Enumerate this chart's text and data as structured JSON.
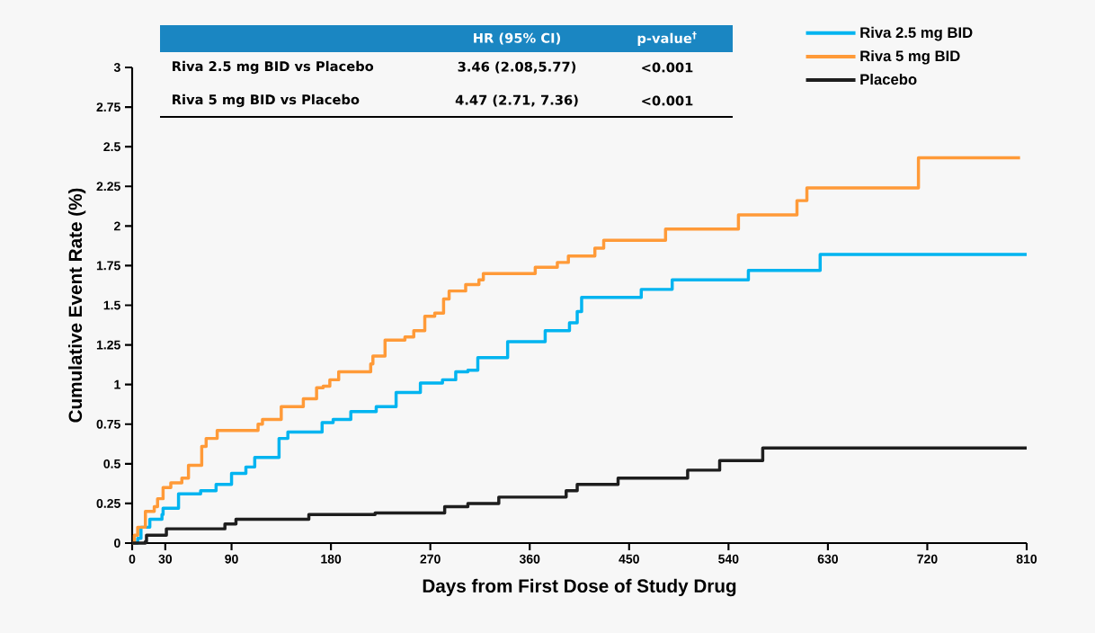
{
  "chart_data": {
    "type": "step",
    "xlabel": "Days from First Dose of Study Drug",
    "ylabel": "Cumulative Event Rate (%)",
    "annotations": [
      "HR (95% CI)",
      "p-value$^{†}$",
      "Riva 2.5 mg BID vs Placebo",
      "3.46 (2.08,5.77)",
      "<0.001",
      "Riva 5 mg BID vs Placebo",
      "4.47 (2.71, 7.36)",
      "<0.001"
    ],
    "series": [
      {
        "name": "Riva 2.5 mg BID",
        "color": "#00b4f0",
        "x": [
          0,
          5,
          8,
          16,
          27,
          28,
          42,
          62,
          76,
          90,
          103,
          111,
          133,
          141,
          172,
          182,
          198,
          221,
          239,
          261,
          281,
          293,
          304,
          313,
          340,
          374,
          396,
          403,
          407,
          461,
          489,
          558,
          623,
          810
        ],
        "values": [
          0,
          0.03,
          0.1,
          0.15,
          0.18,
          0.22,
          0.31,
          0.33,
          0.37,
          0.44,
          0.48,
          0.54,
          0.66,
          0.7,
          0.76,
          0.78,
          0.83,
          0.86,
          0.95,
          1.01,
          1.03,
          1.08,
          1.09,
          1.17,
          1.27,
          1.34,
          1.39,
          1.46,
          1.55,
          1.6,
          1.66,
          1.72,
          1.82,
          1.82
        ]
      },
      {
        "name": "Riva 5 mg BID",
        "color": "#ff9a38",
        "x": [
          0,
          2,
          5,
          12,
          20,
          23,
          28,
          35,
          45,
          51,
          63,
          67,
          77,
          114,
          118,
          135,
          155,
          167,
          173,
          179,
          187,
          216,
          218,
          229,
          247,
          255,
          265,
          274,
          282,
          287,
          302,
          314,
          318,
          365,
          385,
          395,
          419,
          427,
          483,
          549,
          602,
          611,
          712,
          804
        ],
        "values": [
          0,
          0.05,
          0.1,
          0.2,
          0.23,
          0.28,
          0.35,
          0.38,
          0.41,
          0.49,
          0.61,
          0.66,
          0.71,
          0.75,
          0.78,
          0.86,
          0.91,
          0.98,
          0.99,
          1.03,
          1.08,
          1.13,
          1.18,
          1.28,
          1.3,
          1.34,
          1.43,
          1.45,
          1.54,
          1.59,
          1.63,
          1.66,
          1.7,
          1.74,
          1.77,
          1.81,
          1.86,
          1.91,
          1.98,
          2.07,
          2.16,
          2.24,
          2.43,
          2.43
        ]
      },
      {
        "name": "Placebo",
        "color": "#1e1e1e",
        "x": [
          0,
          12,
          13,
          31,
          84,
          94,
          160,
          220,
          283,
          304,
          332,
          393,
          403,
          440,
          503,
          532,
          571,
          810
        ],
        "values": [
          0,
          0.01,
          0.05,
          0.09,
          0.12,
          0.15,
          0.18,
          0.19,
          0.23,
          0.25,
          0.29,
          0.33,
          0.37,
          0.41,
          0.46,
          0.52,
          0.6,
          0.6
        ]
      }
    ],
    "xlim": [
      0,
      810
    ],
    "ylim": [
      0,
      3
    ],
    "xticks": [
      0,
      30,
      90,
      180,
      270,
      360,
      450,
      540,
      630,
      720,
      810
    ],
    "yticks": [
      0,
      0.25,
      0.5,
      0.75,
      1,
      1.25,
      1.5,
      1.75,
      2,
      2.25,
      2.5,
      2.75,
      3
    ],
    "legend": "top right",
    "marker": "none",
    "line_style": "solid"
  }
}
